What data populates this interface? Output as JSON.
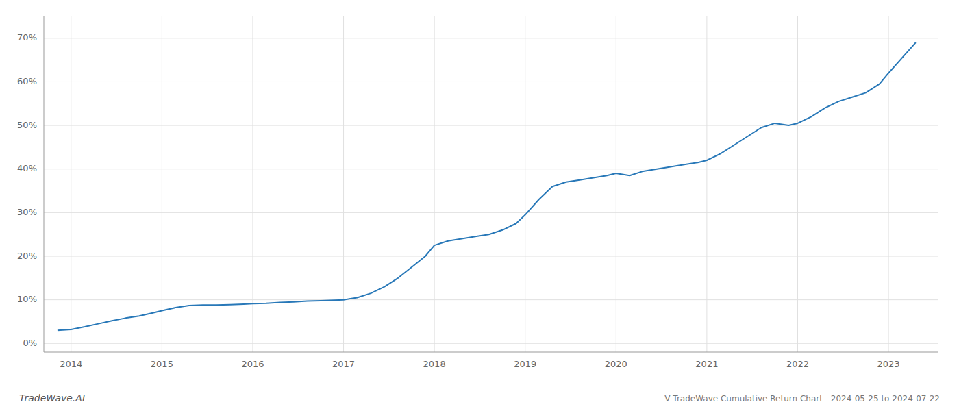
{
  "chart_data": {
    "type": "line",
    "annotations": [
      "TradeWave.AI",
      "V TradeWave Cumulative Return Chart - 2024-05-25 to 2024-07-22"
    ],
    "x": [
      2013.85,
      2014.0,
      2014.15,
      2014.3,
      2014.45,
      2014.6,
      2014.75,
      2014.9,
      2015.0,
      2015.15,
      2015.3,
      2015.45,
      2015.6,
      2015.75,
      2015.9,
      2016.0,
      2016.15,
      2016.3,
      2016.45,
      2016.6,
      2016.75,
      2016.9,
      2017.0,
      2017.15,
      2017.3,
      2017.45,
      2017.6,
      2017.75,
      2017.9,
      2018.0,
      2018.15,
      2018.3,
      2018.45,
      2018.6,
      2018.75,
      2018.9,
      2019.0,
      2019.15,
      2019.3,
      2019.45,
      2019.6,
      2019.75,
      2019.9,
      2020.0,
      2020.15,
      2020.3,
      2020.45,
      2020.6,
      2020.75,
      2020.9,
      2021.0,
      2021.15,
      2021.3,
      2021.45,
      2021.6,
      2021.75,
      2021.9,
      2022.0,
      2022.15,
      2022.3,
      2022.45,
      2022.6,
      2022.75,
      2022.9,
      2023.0,
      2023.15,
      2023.3
    ],
    "values": [
      3.0,
      3.2,
      3.8,
      4.5,
      5.2,
      5.8,
      6.3,
      7.0,
      7.5,
      8.2,
      8.7,
      8.8,
      8.8,
      8.9,
      9.0,
      9.1,
      9.2,
      9.4,
      9.5,
      9.7,
      9.8,
      9.9,
      10.0,
      10.5,
      11.5,
      13.0,
      15.0,
      17.5,
      20.0,
      22.5,
      23.5,
      24.0,
      24.5,
      25.0,
      26.0,
      27.5,
      29.5,
      33.0,
      36.0,
      37.0,
      37.5,
      38.0,
      38.5,
      39.0,
      38.5,
      39.5,
      40.0,
      40.5,
      41.0,
      41.5,
      42.0,
      43.5,
      45.5,
      47.5,
      49.5,
      50.5,
      50.0,
      50.5,
      52.0,
      54.0,
      55.5,
      56.5,
      57.5,
      59.5,
      62.0,
      65.5,
      69.0
    ],
    "color": "#2878b8",
    "xlim": [
      2013.7,
      2023.55
    ],
    "ylim": [
      -2,
      75
    ],
    "xticks": [
      2014,
      2015,
      2016,
      2017,
      2018,
      2019,
      2020,
      2021,
      2022,
      2023
    ],
    "yticks": [
      {
        "value": 0,
        "label": "0%"
      },
      {
        "value": 10,
        "label": "10%"
      },
      {
        "value": 20,
        "label": "20%"
      },
      {
        "value": 30,
        "label": "30%"
      },
      {
        "value": 40,
        "label": "40%"
      },
      {
        "value": 50,
        "label": "50%"
      },
      {
        "value": 60,
        "label": "60%"
      },
      {
        "value": 70,
        "label": "70%"
      }
    ],
    "grid": true
  }
}
